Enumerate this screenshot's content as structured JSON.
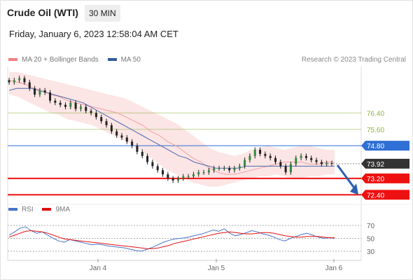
{
  "header": {
    "title": "Crude Oil (WTI)",
    "timeframe": "30 MIN",
    "datetime": "Friday, January 6, 2023 12:58:04 AM CET"
  },
  "legend": {
    "items": [
      {
        "label": "MA 20 + Bollinger Bands",
        "color": "#f08080"
      },
      {
        "label": "MA 50",
        "color": "#2f5a9e"
      }
    ],
    "credit": "Research © 2023 Trading Central"
  },
  "rsi_legend": {
    "items": [
      {
        "label": "RSI",
        "color": "#4a74c9"
      },
      {
        "label": "9MA",
        "color": "#e01010"
      }
    ]
  },
  "chart_data": [
    {
      "type": "line",
      "subtype": "candlestick",
      "x_ticks": [
        "Jan 4",
        "Jan 5",
        "Jan 6"
      ],
      "ylim": [
        72.0,
        78.5
      ],
      "current_price": 73.92,
      "levels": [
        {
          "value": 76.4,
          "label": "76.40",
          "kind": "resistance-far",
          "color": "#8db33f"
        },
        {
          "value": 75.6,
          "label": "75.60",
          "kind": "resistance",
          "color": "#8db33f"
        },
        {
          "value": 74.8,
          "label": "74.80",
          "kind": "pivot",
          "color": "#2f6fd6"
        },
        {
          "value": 73.92,
          "label": "73.92",
          "kind": "last-price",
          "color": "#333333"
        },
        {
          "value": 73.2,
          "label": "73.20",
          "kind": "support",
          "color": "#ee1111"
        },
        {
          "value": 72.4,
          "label": "72.40",
          "kind": "support-far",
          "color": "#ee1111"
        }
      ],
      "price": [
        77.9,
        78.0,
        78.1,
        77.9,
        77.6,
        77.3,
        77.5,
        77.4,
        77.0,
        76.9,
        76.8,
        76.7,
        76.9,
        76.6,
        76.7,
        76.5,
        76.4,
        76.2,
        76.0,
        75.8,
        75.5,
        75.3,
        75.2,
        75.0,
        74.8,
        74.5,
        74.3,
        74.0,
        73.8,
        73.6,
        73.4,
        73.2,
        73.1,
        73.2,
        73.3,
        73.3,
        73.4,
        73.5,
        73.5,
        73.6,
        73.7,
        73.7,
        73.7,
        73.6,
        73.7,
        73.8,
        74.1,
        74.3,
        74.6,
        74.4,
        74.3,
        74.2,
        74.0,
        73.8,
        73.5,
        73.9,
        74.2,
        74.3,
        74.2,
        74.1,
        74.0,
        73.9,
        73.95,
        73.92
      ],
      "ma50": [
        77.5,
        77.6,
        77.6,
        77.6,
        77.5,
        77.4,
        77.3,
        77.2,
        77.1,
        77.0,
        76.9,
        76.7,
        76.5,
        76.3,
        76.1,
        75.9,
        75.7,
        75.5,
        75.3,
        75.1,
        74.9,
        74.7,
        74.5,
        74.3,
        74.2,
        74.0,
        73.9,
        73.8,
        73.7,
        73.7,
        73.7,
        73.7,
        73.8,
        73.8,
        73.8,
        73.8,
        73.8,
        73.8,
        73.8,
        73.8,
        73.8,
        73.8,
        73.8,
        73.8,
        73.8
      ],
      "ma20": [
        78.0,
        77.9,
        77.8,
        77.6,
        77.5,
        77.3,
        77.2,
        77.0,
        76.9,
        76.8,
        76.7,
        76.6,
        76.5,
        76.4,
        76.2,
        76.0,
        75.8,
        75.5,
        75.3,
        75.0,
        74.8,
        74.5,
        74.2,
        74.0,
        73.7,
        73.5,
        73.4,
        73.4,
        73.5,
        73.6,
        73.7,
        73.8,
        73.9,
        74.0,
        74.0,
        74.0,
        73.9,
        73.9,
        74.0,
        74.0
      ],
      "bb_upper": [
        78.4,
        78.4,
        78.3,
        78.2,
        78.1,
        78.0,
        77.9,
        77.8,
        77.7,
        77.6,
        77.5,
        77.4,
        77.3,
        77.2,
        77.1,
        76.9,
        76.7,
        76.5,
        76.3,
        76.1,
        75.9,
        75.6,
        75.3,
        75.0,
        74.7,
        74.5,
        74.4,
        74.3,
        74.4,
        74.6,
        74.7,
        74.8,
        74.7,
        74.6,
        74.7,
        74.8,
        74.8,
        74.7,
        74.6,
        74.6
      ],
      "bb_lower": [
        77.3,
        77.2,
        77.0,
        76.8,
        76.6,
        76.4,
        76.3,
        76.1,
        76.0,
        75.9,
        75.8,
        75.6,
        75.4,
        75.2,
        75.0,
        74.8,
        74.5,
        74.2,
        73.9,
        73.6,
        73.4,
        73.2,
        73.0,
        72.9,
        72.8,
        72.8,
        72.9,
        73.0,
        73.1,
        73.2,
        73.3,
        73.3,
        73.4,
        73.3,
        73.2,
        73.2,
        73.3,
        73.3,
        73.4,
        73.4
      ]
    },
    {
      "type": "line",
      "title": "RSI",
      "ylim": [
        20,
        80
      ],
      "y_ticks": [
        70,
        50,
        30
      ],
      "rsi": [
        55,
        60,
        66,
        68,
        62,
        58,
        60,
        55,
        50,
        46,
        44,
        48,
        46,
        44,
        42,
        40,
        41,
        40,
        38,
        37,
        36,
        35,
        33,
        31,
        30,
        33,
        36,
        40,
        44,
        47,
        49,
        50,
        51,
        53,
        55,
        57,
        60,
        63,
        61,
        65,
        58,
        54,
        56,
        59,
        62,
        60,
        57,
        55,
        52,
        48,
        46,
        50,
        53,
        56,
        58,
        55,
        52,
        50,
        51,
        50
      ],
      "ma9": [
        52,
        55,
        58,
        61,
        62,
        61,
        60,
        58,
        55,
        52,
        49,
        48,
        47,
        46,
        45,
        44,
        43,
        42,
        41,
        40,
        39,
        38,
        37,
        36,
        35,
        34,
        34,
        35,
        37,
        39,
        42,
        44,
        46,
        48,
        50,
        52,
        54,
        56,
        58,
        59,
        60,
        59,
        58,
        57,
        57,
        58,
        59,
        59,
        58,
        56,
        54,
        53,
        52,
        52,
        53,
        53,
        53,
        52,
        51,
        51
      ]
    }
  ]
}
